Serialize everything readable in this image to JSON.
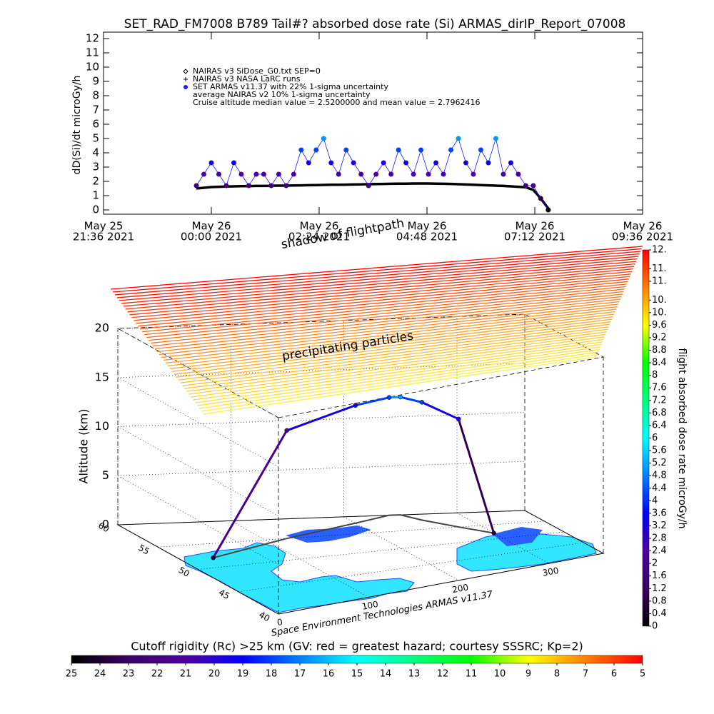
{
  "chart_data": [
    {
      "type": "line",
      "title": "SET_RAD_FM7008  B789 Tail#? absorbed dose rate (Si) ARMAS_dirIP_Report_07008",
      "ylabel": "dD(Si)/dt microGy/h",
      "xlim": [
        "2021-05-25T21:36",
        "2021-05-26T09:36"
      ],
      "xticks": [
        {
          "value": "2021-05-25T21:36",
          "label": [
            "May 25",
            "21:36 2021"
          ]
        },
        {
          "value": "2021-05-26T00:00",
          "label": [
            "May 26",
            "00:00 2021"
          ]
        },
        {
          "value": "2021-05-26T02:24",
          "label": [
            "May 26",
            "02:24 2021"
          ]
        },
        {
          "value": "2021-05-26T04:48",
          "label": [
            "May 26",
            "04:48 2021"
          ]
        },
        {
          "value": "2021-05-26T07:12",
          "label": [
            "May 26",
            "07:12 2021"
          ]
        },
        {
          "value": "2021-05-26T09:36",
          "label": [
            "May 26",
            "09:36 2021"
          ]
        }
      ],
      "ylim": [
        0,
        12
      ],
      "yticks": [
        0,
        1,
        2,
        3,
        4,
        5,
        6,
        7,
        8,
        9,
        10,
        11,
        12
      ],
      "x": [
        "2021-05-25T23:40",
        "2021-05-25T23:50",
        "2021-05-26T00:00",
        "2021-05-26T00:10",
        "2021-05-26T00:20",
        "2021-05-26T00:30",
        "2021-05-26T00:40",
        "2021-05-26T00:50",
        "2021-05-26T01:00",
        "2021-05-26T01:10",
        "2021-05-26T01:20",
        "2021-05-26T01:30",
        "2021-05-26T01:40",
        "2021-05-26T01:50",
        "2021-05-26T02:00",
        "2021-05-26T02:10",
        "2021-05-26T02:20",
        "2021-05-26T02:30",
        "2021-05-26T02:40",
        "2021-05-26T02:50",
        "2021-05-26T03:00",
        "2021-05-26T03:10",
        "2021-05-26T03:20",
        "2021-05-26T03:30",
        "2021-05-26T03:40",
        "2021-05-26T03:50",
        "2021-05-26T04:00",
        "2021-05-26T04:10",
        "2021-05-26T04:20",
        "2021-05-26T04:30",
        "2021-05-26T04:40",
        "2021-05-26T04:50",
        "2021-05-26T05:00",
        "2021-05-26T05:10",
        "2021-05-26T05:20",
        "2021-05-26T05:30",
        "2021-05-26T05:40",
        "2021-05-26T05:50",
        "2021-05-26T06:00",
        "2021-05-26T06:10",
        "2021-05-26T06:20",
        "2021-05-26T06:30",
        "2021-05-26T06:40",
        "2021-05-26T06:50",
        "2021-05-26T07:00",
        "2021-05-26T07:10",
        "2021-05-26T07:20",
        "2021-05-26T07:30"
      ],
      "series": [
        {
          "name": "NAIRAS v3 SiDose_G0.txt SEP=0",
          "color": "#000000",
          "values": [
            1.5,
            1.55,
            1.6,
            1.62,
            1.64,
            1.65,
            1.66,
            1.67,
            1.68,
            1.68,
            1.69,
            1.7,
            1.7,
            1.71,
            1.72,
            1.73,
            1.74,
            1.75,
            1.76,
            1.76,
            1.77,
            1.78,
            1.79,
            1.8,
            1.81,
            1.82,
            1.83,
            1.84,
            1.84,
            1.85,
            1.85,
            1.85,
            1.84,
            1.83,
            1.82,
            1.8,
            1.78,
            1.76,
            1.74,
            1.72,
            1.7,
            1.68,
            1.65,
            1.62,
            1.58,
            1.4,
            0.8,
            0.1
          ]
        },
        {
          "name": "SET ARMAS v11.37 with 22% 1-sigma uncertainty",
          "color": "#1a1aff",
          "values": [
            1.7,
            2.5,
            3.3,
            2.5,
            1.7,
            3.3,
            2.5,
            1.7,
            2.5,
            2.5,
            1.7,
            2.5,
            1.7,
            2.5,
            4.2,
            3.3,
            4.2,
            5.0,
            3.3,
            2.5,
            4.2,
            3.3,
            2.5,
            1.7,
            2.5,
            3.3,
            2.5,
            4.2,
            3.3,
            2.5,
            4.2,
            2.5,
            3.3,
            2.5,
            4.2,
            5.0,
            3.3,
            2.5,
            4.2,
            3.3,
            5.0,
            2.5,
            3.3,
            2.5,
            1.7,
            1.7,
            0.8,
            0.0
          ]
        }
      ],
      "annotations": [
        "NAIRAS v3 NASA LaRC runs",
        "average NAIRAS v2 10% 1-sigma uncertainty",
        "Cruise altitude median value = 2.5200000 and mean value = 2.7962416"
      ]
    },
    {
      "type": "surface3d",
      "zlabel": "Altitude (km)",
      "xlim": [
        0,
        360
      ],
      "xticks": [
        0,
        100,
        200,
        300
      ],
      "ylim": [
        40,
        60
      ],
      "yticks": [
        40,
        45,
        50,
        55,
        60
      ],
      "zlim": [
        0,
        20
      ],
      "zticks": [
        0,
        5,
        10,
        15,
        20
      ],
      "annotations": [
        "shadow of flightpath",
        "precipitating particles",
        "Space Environment Technologies ARMAS v11.37"
      ],
      "track": {
        "x": [
          30,
          120,
          200,
          240,
          250,
          260,
          280,
          300
        ],
        "y": [
          52,
          55,
          58,
          60,
          60,
          58,
          55,
          52
        ],
        "z": [
          0,
          11,
          12,
          12,
          12,
          12,
          11,
          0
        ],
        "values": [
          0.5,
          2.0,
          3.3,
          4.2,
          5.0,
          4.2,
          3.3,
          1.0
        ]
      }
    },
    {
      "type": "colorbar",
      "orientation": "vertical",
      "label": "flight absorbed dose rate microGy/h",
      "lim": [
        0,
        12
      ],
      "ticks": [
        0,
        0.4,
        0.8,
        1.2,
        1.6,
        2.0,
        2.4,
        2.8,
        3.2,
        3.6,
        4.0,
        4.4,
        4.8,
        5.2,
        5.6,
        6.0,
        6.4,
        6.8,
        7.2,
        7.6,
        8.0,
        8.4,
        8.8,
        9.2,
        9.6,
        {
          "value": 10.0,
          "label": "10."
        },
        {
          "value": 10.4,
          "label": "10."
        },
        {
          "value": 11.0,
          "label": "11."
        },
        {
          "value": 11.4,
          "label": "11."
        },
        {
          "value": 12.0,
          "label": "12."
        }
      ],
      "colormap": [
        "#000000",
        "#3c0064",
        "#5000a0",
        "#0000ff",
        "#0080ff",
        "#00ffff",
        "#00ff80",
        "#00ff00",
        "#ffff00",
        "#ff8000",
        "#ff0000"
      ]
    },
    {
      "type": "colorbar",
      "orientation": "horizontal",
      "label": "Cutoff rigidity (Rc) >25 km (GV: red = greatest hazard; courtesy SSSRC; Kp=2)",
      "lim": [
        25,
        5
      ],
      "ticks": [
        25,
        24,
        23,
        22,
        21,
        20,
        19,
        18,
        17,
        16,
        15,
        14,
        13,
        12,
        11,
        10,
        9,
        8,
        7,
        6,
        5
      ],
      "colormap": [
        "#000000",
        "#3c0064",
        "#5000a0",
        "#0000ff",
        "#0080ff",
        "#00ffff",
        "#00ff80",
        "#00ff00",
        "#ffff00",
        "#ff8000",
        "#ff0000"
      ]
    }
  ]
}
